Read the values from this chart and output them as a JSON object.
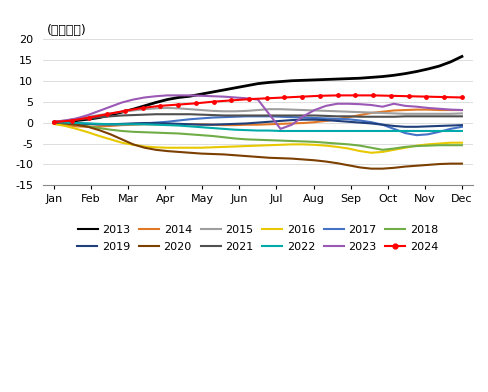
{
  "title": "(万亿日元)",
  "ylim": [
    -15,
    20
  ],
  "yticks": [
    -15,
    -10,
    -5,
    0,
    5,
    10,
    15,
    20
  ],
  "months": [
    "Jan",
    "Feb",
    "Mar",
    "Apr",
    "May",
    "Jun",
    "Jul",
    "Aug",
    "Sep",
    "Oct",
    "Nov",
    "Dec"
  ],
  "year_colors": {
    "2013": "#000000",
    "2014": "#E07828",
    "2015": "#9E9E9E",
    "2016": "#E8C800",
    "2017": "#4472C4",
    "2018": "#70AD47",
    "2019": "#1F3F7A",
    "2020": "#7B3F00",
    "2021": "#505050",
    "2022": "#00AAAA",
    "2023": "#9B59B6",
    "2024": "#FF0000"
  },
  "series_data": {
    "2013": [
      0.0,
      0.2,
      0.5,
      0.8,
      1.2,
      1.8,
      2.5,
      3.2,
      4.0,
      4.8,
      5.5,
      6.0,
      6.3,
      6.8,
      7.3,
      7.8,
      8.3,
      8.8,
      9.3,
      9.6,
      9.8,
      10.0,
      10.1,
      10.2,
      10.3,
      10.4,
      10.5,
      10.6,
      10.8,
      11.0,
      11.3,
      11.7,
      12.2,
      12.8,
      13.5,
      14.5,
      15.8
    ],
    "2014": [
      -0.3,
      -0.6,
      -0.9,
      -1.0,
      -0.9,
      -0.8,
      -0.6,
      -0.5,
      -0.4,
      -0.4,
      -0.4,
      -0.4,
      -0.4,
      -0.4,
      -0.5,
      -0.6,
      -0.6,
      -0.5,
      -0.5,
      -0.4,
      -0.3,
      -0.2,
      -0.1,
      0.1,
      0.4,
      0.8,
      1.3,
      1.8,
      2.3,
      2.6,
      2.9,
      3.0,
      3.1,
      3.1,
      3.0,
      3.0,
      3.0
    ],
    "2015": [
      0.2,
      0.5,
      0.9,
      1.4,
      1.8,
      2.2,
      2.6,
      2.9,
      3.2,
      3.4,
      3.5,
      3.4,
      3.2,
      3.0,
      2.8,
      2.7,
      2.7,
      2.8,
      3.0,
      3.2,
      3.2,
      3.1,
      3.0,
      2.9,
      2.8,
      2.7,
      2.6,
      2.5,
      2.4,
      2.3,
      2.2,
      2.1,
      2.1,
      2.1,
      2.1,
      2.1,
      2.2
    ],
    "2016": [
      -0.3,
      -0.8,
      -1.5,
      -2.3,
      -3.2,
      -4.0,
      -4.8,
      -5.3,
      -5.7,
      -5.9,
      -6.0,
      -6.0,
      -6.0,
      -6.0,
      -5.9,
      -5.8,
      -5.7,
      -5.6,
      -5.5,
      -5.4,
      -5.3,
      -5.2,
      -5.2,
      -5.3,
      -5.5,
      -5.8,
      -6.2,
      -6.8,
      -7.2,
      -7.0,
      -6.5,
      -6.0,
      -5.5,
      -5.2,
      -5.0,
      -4.8,
      -4.8
    ],
    "2017": [
      0.1,
      0.0,
      -0.2,
      -0.3,
      -0.4,
      -0.4,
      -0.4,
      -0.3,
      -0.2,
      0.0,
      0.2,
      0.5,
      0.8,
      1.0,
      1.2,
      1.3,
      1.4,
      1.5,
      1.5,
      1.5,
      1.4,
      1.3,
      1.2,
      1.1,
      1.0,
      0.9,
      0.8,
      0.5,
      0.1,
      -0.5,
      -1.5,
      -2.5,
      -3.0,
      -2.8,
      -2.2,
      -1.5,
      -1.0
    ],
    "2018": [
      0.1,
      -0.2,
      -0.5,
      -0.9,
      -1.3,
      -1.7,
      -2.0,
      -2.2,
      -2.3,
      -2.4,
      -2.5,
      -2.6,
      -2.8,
      -3.0,
      -3.2,
      -3.5,
      -3.8,
      -4.0,
      -4.1,
      -4.2,
      -4.3,
      -4.4,
      -4.5,
      -4.6,
      -4.8,
      -5.0,
      -5.2,
      -5.5,
      -6.0,
      -6.5,
      -6.2,
      -5.8,
      -5.6,
      -5.5,
      -5.4,
      -5.4,
      -5.4
    ],
    "2019": [
      0.1,
      0.0,
      -0.2,
      -0.3,
      -0.4,
      -0.4,
      -0.3,
      -0.2,
      -0.1,
      -0.1,
      -0.2,
      -0.3,
      -0.4,
      -0.5,
      -0.5,
      -0.4,
      -0.3,
      -0.2,
      0.0,
      0.2,
      0.4,
      0.6,
      0.7,
      0.7,
      0.6,
      0.4,
      0.2,
      0.0,
      -0.2,
      -0.5,
      -0.8,
      -1.0,
      -1.0,
      -0.9,
      -0.8,
      -0.7,
      -0.6
    ],
    "2020": [
      0.1,
      -0.2,
      -0.5,
      -1.0,
      -1.8,
      -2.8,
      -4.0,
      -5.2,
      -6.0,
      -6.5,
      -6.8,
      -7.0,
      -7.2,
      -7.4,
      -7.5,
      -7.6,
      -7.8,
      -8.0,
      -8.2,
      -8.4,
      -8.5,
      -8.6,
      -8.8,
      -9.0,
      -9.3,
      -9.7,
      -10.2,
      -10.7,
      -11.0,
      -11.0,
      -10.8,
      -10.5,
      -10.3,
      -10.1,
      -9.9,
      -9.8,
      -9.8
    ],
    "2021": [
      0.2,
      0.4,
      0.7,
      1.0,
      1.3,
      1.5,
      1.7,
      1.8,
      1.9,
      2.0,
      2.0,
      2.0,
      2.0,
      1.9,
      1.8,
      1.7,
      1.7,
      1.7,
      1.7,
      1.7,
      1.7,
      1.7,
      1.7,
      1.7,
      1.6,
      1.5,
      1.5,
      1.4,
      1.4,
      1.4,
      1.4,
      1.5,
      1.5,
      1.5,
      1.5,
      1.5,
      1.5
    ],
    "2022": [
      0.1,
      0.0,
      -0.1,
      -0.2,
      -0.3,
      -0.4,
      -0.4,
      -0.4,
      -0.4,
      -0.5,
      -0.6,
      -0.7,
      -0.9,
      -1.1,
      -1.3,
      -1.5,
      -1.7,
      -1.8,
      -1.9,
      -1.9,
      -2.0,
      -2.0,
      -2.0,
      -2.0,
      -2.0,
      -2.0,
      -2.0,
      -2.0,
      -2.0,
      -2.0,
      -2.0,
      -2.0,
      -2.0,
      -2.0,
      -2.0,
      -2.0,
      -2.0
    ],
    "2023": [
      0.2,
      0.5,
      1.0,
      1.8,
      2.8,
      3.8,
      4.8,
      5.5,
      6.0,
      6.3,
      6.5,
      6.5,
      6.5,
      6.4,
      6.3,
      6.2,
      6.0,
      5.8,
      5.5,
      2.0,
      -1.5,
      -0.5,
      1.5,
      3.0,
      4.0,
      4.5,
      4.5,
      4.4,
      4.2,
      3.8,
      4.5,
      4.0,
      3.8,
      3.5,
      3.3,
      3.1,
      3.0
    ],
    "2024": [
      0.1,
      0.5,
      1.2,
      2.0,
      2.8,
      3.5,
      4.0,
      4.3,
      4.6,
      5.0,
      5.3,
      5.6,
      5.8,
      6.0,
      6.2,
      6.4,
      6.5,
      6.5,
      6.5,
      6.4,
      6.3,
      6.2,
      6.1,
      6.0
    ]
  },
  "legend_row1": [
    "2013",
    "2014",
    "2015",
    "2016",
    "2017",
    "2018"
  ],
  "legend_row2": [
    "2019",
    "2020",
    "2021",
    "2022",
    "2023",
    "2024"
  ]
}
